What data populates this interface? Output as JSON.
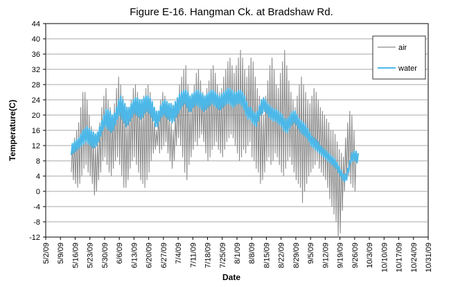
{
  "chart_data": {
    "type": "line",
    "title": "Figure E-16.  Hangman Ck. at Bradshaw Rd.",
    "xlabel": "Date",
    "ylabel": "Temperature(C)",
    "ylim": [
      -12,
      44
    ],
    "yticks": [
      -12,
      -8,
      -4,
      0,
      4,
      8,
      12,
      16,
      20,
      24,
      28,
      32,
      36,
      40,
      44
    ],
    "x_tick_labels": [
      "5/2/09",
      "5/9/09",
      "5/16/09",
      "5/23/09",
      "5/30/09",
      "6/6/09",
      "6/13/09",
      "6/20/09",
      "6/27/09",
      "7/4/09",
      "7/11/09",
      "7/18/09",
      "7/25/09",
      "8/1/09",
      "8/8/09",
      "8/15/09",
      "8/22/09",
      "8/29/09",
      "9/5/09",
      "9/12/09",
      "9/19/09",
      "9/26/09",
      "10/3/09",
      "10/10/09",
      "10/17/09",
      "10/24/09",
      "10/31/09"
    ],
    "grid": "horizontal",
    "legend_position": "top-right",
    "series": [
      {
        "name": "air",
        "color": "#8c8c8c",
        "daily_min": [
          5,
          3,
          2,
          1,
          2,
          4,
          6,
          7,
          5,
          4,
          2,
          -1,
          0,
          3,
          5,
          8,
          9,
          7,
          5,
          4,
          6,
          8,
          9,
          7,
          4,
          1,
          1,
          3,
          6,
          8,
          9,
          7,
          5,
          3,
          2,
          1,
          3,
          5,
          8,
          10,
          11,
          12,
          10,
          11,
          12,
          13,
          10,
          8,
          6,
          8,
          12,
          14,
          12,
          9,
          5,
          3,
          7,
          9,
          11,
          13,
          12,
          14,
          15,
          13,
          10,
          8,
          9,
          11,
          12,
          13,
          11,
          10,
          9,
          11,
          13,
          14,
          15,
          14,
          12,
          10,
          8,
          9,
          11,
          10,
          12,
          13,
          9,
          8,
          6,
          5,
          2,
          3,
          5,
          8,
          9,
          7,
          8,
          10,
          9,
          7,
          5,
          4,
          6,
          8,
          9,
          7,
          5,
          3,
          2,
          1,
          -3,
          0,
          2,
          4,
          5,
          6,
          7,
          8,
          6,
          5,
          4,
          3,
          1,
          -2,
          -4,
          -6,
          -8,
          -12,
          -11,
          -5,
          0,
          3,
          4,
          2,
          1,
          0
        ],
        "daily_max": [
          12,
          14,
          16,
          18,
          22,
          26,
          26,
          24,
          20,
          17,
          14,
          12,
          13,
          18,
          22,
          25,
          27,
          24,
          22,
          20,
          23,
          27,
          30,
          28,
          25,
          22,
          18,
          21,
          24,
          27,
          28,
          26,
          24,
          23,
          25,
          27,
          28,
          26,
          22,
          18,
          16,
          20,
          24,
          26,
          25,
          22,
          20,
          18,
          16,
          20,
          24,
          28,
          30,
          32,
          33,
          28,
          22,
          25,
          28,
          31,
          32,
          29,
          26,
          24,
          27,
          29,
          32,
          33,
          31,
          28,
          26,
          27,
          30,
          32,
          34,
          35,
          33,
          31,
          33,
          35,
          37,
          35,
          32,
          30,
          33,
          35,
          34,
          30,
          27,
          25,
          22,
          20,
          25,
          29,
          33,
          35,
          32,
          28,
          27,
          31,
          34,
          37,
          33,
          29,
          26,
          24,
          22,
          25,
          28,
          30,
          28,
          26,
          24,
          23,
          25,
          27,
          26,
          24,
          22,
          21,
          20,
          19,
          18,
          16,
          16,
          15,
          13,
          11,
          10,
          9,
          14,
          18,
          21,
          20,
          16,
          10
        ]
      },
      {
        "name": "water",
        "color": "#4db8e8",
        "daily_min": [
          9.5,
          10,
          10.5,
          11,
          11.5,
          12,
          12.5,
          13,
          12.5,
          12,
          11.5,
          11.5,
          12,
          13,
          14.5,
          16,
          17,
          16.5,
          16,
          15.5,
          16,
          17.5,
          19,
          20,
          19,
          18,
          17,
          17.5,
          18.5,
          19.5,
          20.5,
          20,
          19.5,
          19,
          19.5,
          20.5,
          21,
          20.5,
          19.5,
          18.5,
          17,
          17,
          18.5,
          19.5,
          20,
          19.5,
          19,
          18.5,
          18,
          18.5,
          19.5,
          20.5,
          21.5,
          22.5,
          23,
          22,
          21,
          21,
          22,
          22.5,
          22.5,
          22,
          21.5,
          21,
          21.5,
          22,
          22.5,
          23,
          22.5,
          22,
          21.5,
          21.5,
          22,
          22.5,
          23,
          23,
          22.5,
          22,
          22.5,
          23,
          23,
          22.5,
          21.5,
          20,
          19,
          19,
          18,
          17.5,
          17,
          18.5,
          20,
          20.5,
          21,
          20.5,
          19.5,
          19,
          18.5,
          18.5,
          18,
          17.5,
          17,
          16,
          15.5,
          15.5,
          16.5,
          17.5,
          18,
          17.5,
          16.5,
          15.5,
          15,
          14.5,
          14,
          13,
          12,
          11.5,
          11,
          10.5,
          10,
          9.5,
          9,
          8.5,
          8,
          7.5,
          7,
          6.5,
          6,
          5,
          4,
          3,
          2.5,
          3,
          5,
          7.5,
          8,
          8,
          7.5
        ],
        "daily_max": [
          12.5,
          13,
          13.5,
          14,
          15,
          16,
          16.5,
          17,
          16.5,
          16,
          15.5,
          15,
          15.5,
          17,
          18.5,
          20,
          21.5,
          21.5,
          21,
          20,
          20.5,
          22,
          24,
          25,
          24,
          23,
          22,
          22,
          23,
          24,
          24.5,
          24.5,
          24,
          24,
          24.5,
          25,
          25,
          24.5,
          23.5,
          22,
          21,
          21,
          22.5,
          23.5,
          24,
          23.5,
          23,
          23,
          22.5,
          23.5,
          24.5,
          25.5,
          26,
          26.5,
          26.5,
          26,
          25,
          25.5,
          26,
          26.5,
          26.5,
          26,
          25.5,
          25,
          25.5,
          26,
          26.5,
          26.5,
          26,
          25.5,
          25,
          25.5,
          26,
          26.5,
          27,
          27,
          26.5,
          26,
          26,
          26.5,
          26.5,
          26,
          25,
          23.5,
          22,
          22,
          21,
          20.5,
          21,
          22.5,
          24,
          24.5,
          24,
          23,
          22.5,
          22,
          21.5,
          21.5,
          21,
          20.5,
          20,
          19,
          19,
          19.5,
          20.5,
          21,
          21,
          20,
          19,
          18.5,
          18,
          17.5,
          16.5,
          15.5,
          14.5,
          14,
          13.5,
          13,
          12,
          11.5,
          11,
          10.5,
          10,
          9.5,
          9,
          8.5,
          7.5,
          6.5,
          5.5,
          4.5,
          4.5,
          6,
          8,
          10,
          10.5,
          10.5,
          10
        ]
      }
    ]
  }
}
